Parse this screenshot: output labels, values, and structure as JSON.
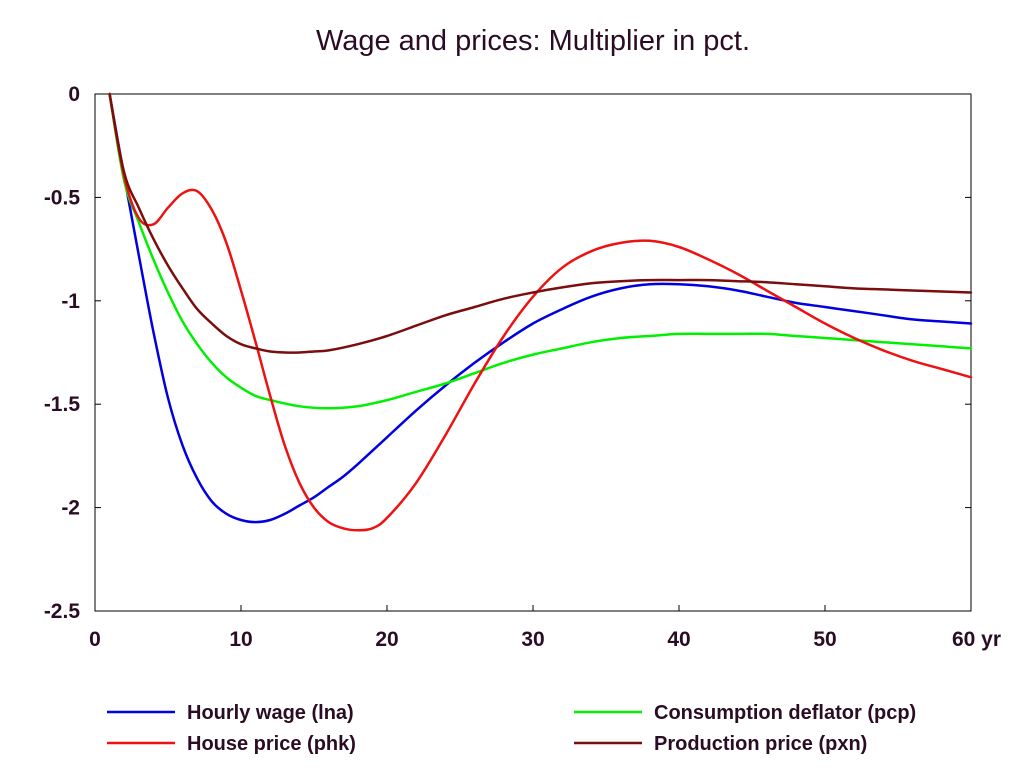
{
  "chart_data": {
    "type": "line",
    "title": "Wage and prices: Multiplier in pct.",
    "xlabel": "",
    "ylabel": "",
    "x_unit": "yr",
    "xlim": [
      0,
      60
    ],
    "ylim": [
      -2.5,
      0
    ],
    "xticks": [
      0,
      10,
      20,
      30,
      40,
      50,
      60
    ],
    "xtick_labels": [
      "0",
      "10",
      "20",
      "30",
      "40",
      "50",
      "60 yr"
    ],
    "yticks": [
      0,
      -0.5,
      -1,
      -1.5,
      -2,
      -2.5
    ],
    "ytick_labels": [
      "0",
      "-0.5",
      "-1",
      "-1.5",
      "-2",
      "-2.5"
    ],
    "grid": false,
    "legend_position": "bottom",
    "series": [
      {
        "name": "Hourly wage (lna)",
        "color": "#0000e0",
        "x": [
          1,
          2,
          3,
          4,
          5,
          6,
          7,
          8,
          9,
          10,
          11,
          12,
          13,
          14,
          15,
          16,
          17,
          18,
          20,
          22,
          24,
          26,
          28,
          30,
          32,
          34,
          36,
          38,
          40,
          42,
          44,
          46,
          48,
          50,
          52,
          54,
          56,
          58,
          60
        ],
        "y": [
          0,
          -0.4,
          -0.78,
          -1.15,
          -1.47,
          -1.7,
          -1.86,
          -1.97,
          -2.03,
          -2.06,
          -2.07,
          -2.06,
          -2.03,
          -1.99,
          -1.95,
          -1.9,
          -1.85,
          -1.79,
          -1.66,
          -1.53,
          -1.41,
          -1.3,
          -1.2,
          -1.11,
          -1.04,
          -0.98,
          -0.94,
          -0.92,
          -0.92,
          -0.93,
          -0.95,
          -0.98,
          -1.01,
          -1.03,
          -1.05,
          -1.07,
          -1.09,
          -1.1,
          -1.11
        ]
      },
      {
        "name": "Consumption deflator (pcp)",
        "color": "#00f000",
        "x": [
          1,
          2,
          3,
          4,
          5,
          6,
          7,
          8,
          9,
          10,
          11,
          12,
          14,
          16,
          18,
          20,
          22,
          24,
          26,
          28,
          30,
          32,
          34,
          36,
          38,
          40,
          42,
          44,
          46,
          48,
          50,
          52,
          54,
          56,
          58,
          60
        ],
        "y": [
          0,
          -0.42,
          -0.62,
          -0.8,
          -0.96,
          -1.1,
          -1.21,
          -1.3,
          -1.37,
          -1.42,
          -1.46,
          -1.48,
          -1.51,
          -1.52,
          -1.51,
          -1.48,
          -1.44,
          -1.4,
          -1.35,
          -1.3,
          -1.26,
          -1.23,
          -1.2,
          -1.18,
          -1.17,
          -1.16,
          -1.16,
          -1.16,
          -1.16,
          -1.17,
          -1.18,
          -1.19,
          -1.2,
          -1.21,
          -1.22,
          -1.23
        ]
      },
      {
        "name": "House price (phk)",
        "color": "#ee1111",
        "x": [
          1,
          2,
          3,
          4,
          5,
          6,
          7,
          8,
          9,
          10,
          11,
          12,
          13,
          14,
          15,
          16,
          17,
          18,
          19,
          20,
          22,
          24,
          26,
          28,
          30,
          32,
          34,
          36,
          38,
          40,
          42,
          44,
          46,
          48,
          50,
          52,
          54,
          56,
          58,
          60
        ],
        "y": [
          0,
          -0.4,
          -0.6,
          -0.63,
          -0.55,
          -0.48,
          -0.47,
          -0.56,
          -0.72,
          -0.95,
          -1.2,
          -1.46,
          -1.7,
          -1.88,
          -2.0,
          -2.07,
          -2.1,
          -2.11,
          -2.1,
          -2.05,
          -1.88,
          -1.65,
          -1.4,
          -1.17,
          -0.98,
          -0.84,
          -0.76,
          -0.72,
          -0.71,
          -0.74,
          -0.8,
          -0.87,
          -0.95,
          -1.03,
          -1.11,
          -1.18,
          -1.24,
          -1.29,
          -1.33,
          -1.37
        ]
      },
      {
        "name": "Production price (pxn)",
        "color": "#7a0d0d",
        "x": [
          1,
          2,
          3,
          4,
          5,
          6,
          7,
          8,
          9,
          10,
          11,
          12,
          13,
          14,
          15,
          16,
          18,
          20,
          22,
          24,
          26,
          28,
          30,
          32,
          34,
          36,
          38,
          40,
          42,
          44,
          46,
          48,
          50,
          52,
          54,
          56,
          58,
          60
        ],
        "y": [
          0,
          -0.38,
          -0.55,
          -0.7,
          -0.83,
          -0.94,
          -1.04,
          -1.11,
          -1.17,
          -1.21,
          -1.23,
          -1.245,
          -1.25,
          -1.25,
          -1.245,
          -1.24,
          -1.21,
          -1.17,
          -1.12,
          -1.07,
          -1.03,
          -0.99,
          -0.96,
          -0.935,
          -0.915,
          -0.905,
          -0.9,
          -0.9,
          -0.9,
          -0.905,
          -0.91,
          -0.92,
          -0.93,
          -0.94,
          -0.945,
          -0.95,
          -0.955,
          -0.96
        ]
      }
    ]
  }
}
